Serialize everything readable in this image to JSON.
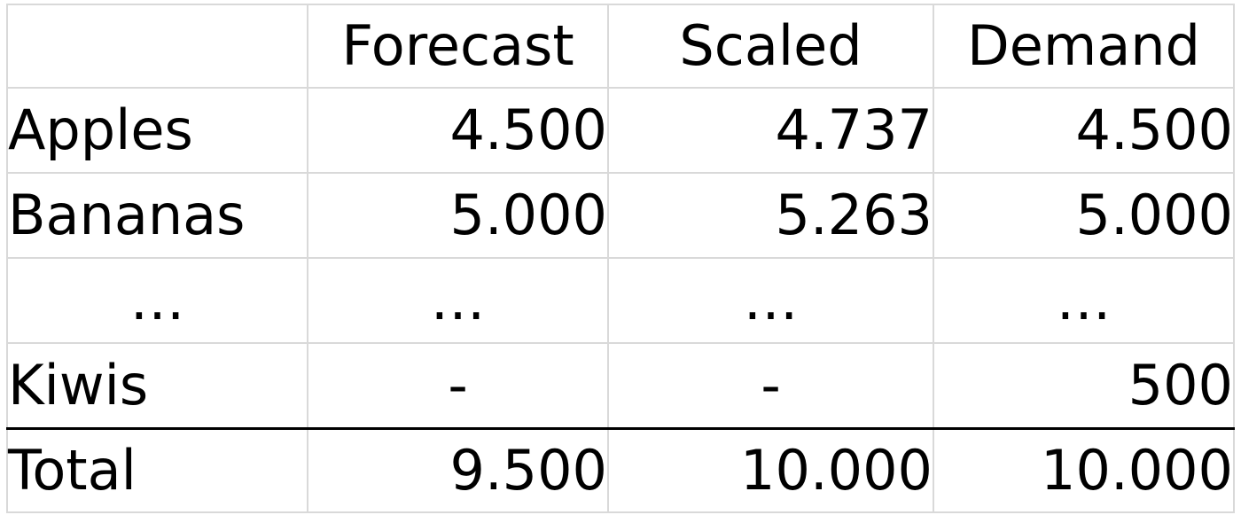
{
  "table": {
    "headers": [
      "",
      "Forecast",
      "Scaled",
      "Demand"
    ],
    "rows": [
      {
        "label": "Apples",
        "forecast": "4.500",
        "scaled": "4.737",
        "demand": "4.500"
      },
      {
        "label": "Bananas",
        "forecast": "5.000",
        "scaled": "5.263",
        "demand": "5.000"
      },
      {
        "label": "…",
        "forecast": "…",
        "scaled": "…",
        "demand": "…"
      },
      {
        "label": "Kiwis",
        "forecast": "-",
        "scaled": "-",
        "demand": "500"
      }
    ],
    "total": {
      "label": "Total",
      "forecast": "9.500",
      "scaled": "10.000",
      "demand": "10.000"
    }
  },
  "colors": {
    "gridline": "#d9d9d9",
    "total_rule": "#000000",
    "text": "#000000",
    "background": "#ffffff"
  }
}
